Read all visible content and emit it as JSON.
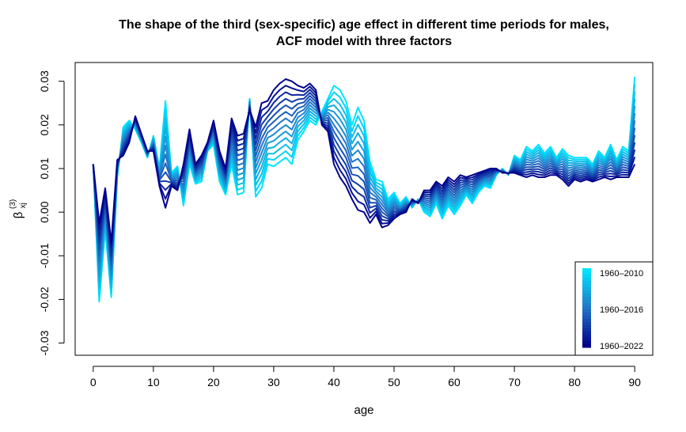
{
  "chart_data": {
    "type": "line",
    "title_line1": "The shape of the third (sex-specific) age effect in different time periods for males,",
    "title_line2": "ACF model with three factors",
    "xlabel": "age",
    "ylabel": "β",
    "ylabel_sub": "xj",
    "ylabel_sup": "(3)",
    "xlim": [
      0,
      90
    ],
    "ylim": [
      -0.03,
      0.03
    ],
    "x_ticks": [
      0,
      10,
      20,
      30,
      40,
      50,
      60,
      70,
      80,
      90
    ],
    "y_ticks": [
      -0.03,
      -0.02,
      -0.01,
      0.0,
      0.01,
      0.02,
      0.03
    ],
    "y_tick_labels": [
      "-0.03",
      "-0.02",
      "-0.01",
      "0.00",
      "0.01",
      "0.02",
      "0.03"
    ],
    "colors": {
      "start": "#00e5ff",
      "mid": "#2176c7",
      "end": "#00008b"
    },
    "legend": {
      "position": "bottom-right",
      "entries": [
        "1960–2010",
        "1960–2016",
        "1960–2022"
      ]
    },
    "series_knots": {
      "ages": [
        0,
        1,
        2,
        3,
        4,
        5,
        6,
        7,
        8,
        9,
        10,
        11,
        12,
        13,
        14,
        15,
        16,
        17,
        18,
        19,
        20,
        21,
        22,
        23,
        24,
        25,
        26,
        27,
        28,
        29,
        30,
        31,
        32,
        33,
        34,
        35,
        36,
        37,
        38,
        39,
        40,
        41,
        42,
        43,
        44,
        45,
        46,
        47,
        48,
        49,
        50,
        51,
        52,
        53,
        54,
        55,
        56,
        57,
        58,
        59,
        60,
        61,
        62,
        63,
        64,
        65,
        66,
        67,
        68,
        69,
        70,
        71,
        72,
        73,
        74,
        75,
        76,
        77,
        78,
        79,
        80,
        81,
        82,
        83,
        84,
        85,
        86,
        87,
        88,
        89,
        90
      ],
      "first": [
        0.011,
        -0.0205,
        -0.004,
        -0.0195,
        0.008,
        0.0195,
        0.021,
        0.019,
        0.016,
        0.0125,
        0.0175,
        0.01,
        0.0255,
        0.009,
        0.0105,
        0.0015,
        0.011,
        0.0065,
        0.007,
        0.014,
        0.0155,
        0.007,
        0.004,
        0.011,
        0.004,
        0.0045,
        0.026,
        0.0035,
        0.0055,
        0.011,
        0.0105,
        0.0115,
        0.0125,
        0.011,
        0.0165,
        0.0185,
        0.021,
        0.02,
        0.023,
        0.026,
        0.029,
        0.028,
        0.0255,
        0.02,
        0.024,
        0.021,
        0.0115,
        0.0075,
        0.007,
        0.003,
        0.0045,
        0.002,
        0.0035,
        0.001,
        0.003,
        0.0,
        -0.001,
        0.002,
        -0.0015,
        0.0015,
        -0.0005,
        0.0015,
        0.004,
        0.002,
        0.0045,
        0.006,
        0.0055,
        0.0085,
        0.01,
        0.0085,
        0.013,
        0.012,
        0.015,
        0.014,
        0.0155,
        0.0135,
        0.015,
        0.0125,
        0.0145,
        0.013,
        0.0125,
        0.0125,
        0.0125,
        0.011,
        0.014,
        0.0125,
        0.0155,
        0.012,
        0.015,
        0.014,
        0.031
      ],
      "last": [
        0.011,
        -0.0025,
        0.0055,
        -0.007,
        0.012,
        0.013,
        0.016,
        0.022,
        0.018,
        0.014,
        0.014,
        0.006,
        0.001,
        0.006,
        0.005,
        0.011,
        0.019,
        0.011,
        0.013,
        0.016,
        0.021,
        0.014,
        0.01,
        0.0215,
        0.0175,
        0.018,
        0.0235,
        0.0195,
        0.025,
        0.0255,
        0.028,
        0.0295,
        0.0305,
        0.03,
        0.029,
        0.0285,
        0.0295,
        0.028,
        0.02,
        0.0185,
        0.011,
        0.008,
        0.006,
        0.003,
        0.0005,
        0.0,
        -0.0025,
        -0.0005,
        -0.0035,
        -0.003,
        -0.0015,
        -0.0005,
        0.0,
        0.003,
        0.002,
        0.005,
        0.005,
        0.007,
        0.006,
        0.008,
        0.007,
        0.0085,
        0.008,
        0.0085,
        0.009,
        0.0095,
        0.01,
        0.01,
        0.009,
        0.009,
        0.009,
        0.0085,
        0.008,
        0.0085,
        0.008,
        0.008,
        0.0085,
        0.0085,
        0.0075,
        0.006,
        0.0075,
        0.007,
        0.0075,
        0.007,
        0.0075,
        0.008,
        0.0075,
        0.008,
        0.008,
        0.008,
        0.011
      ],
      "n_series": 13
    }
  }
}
